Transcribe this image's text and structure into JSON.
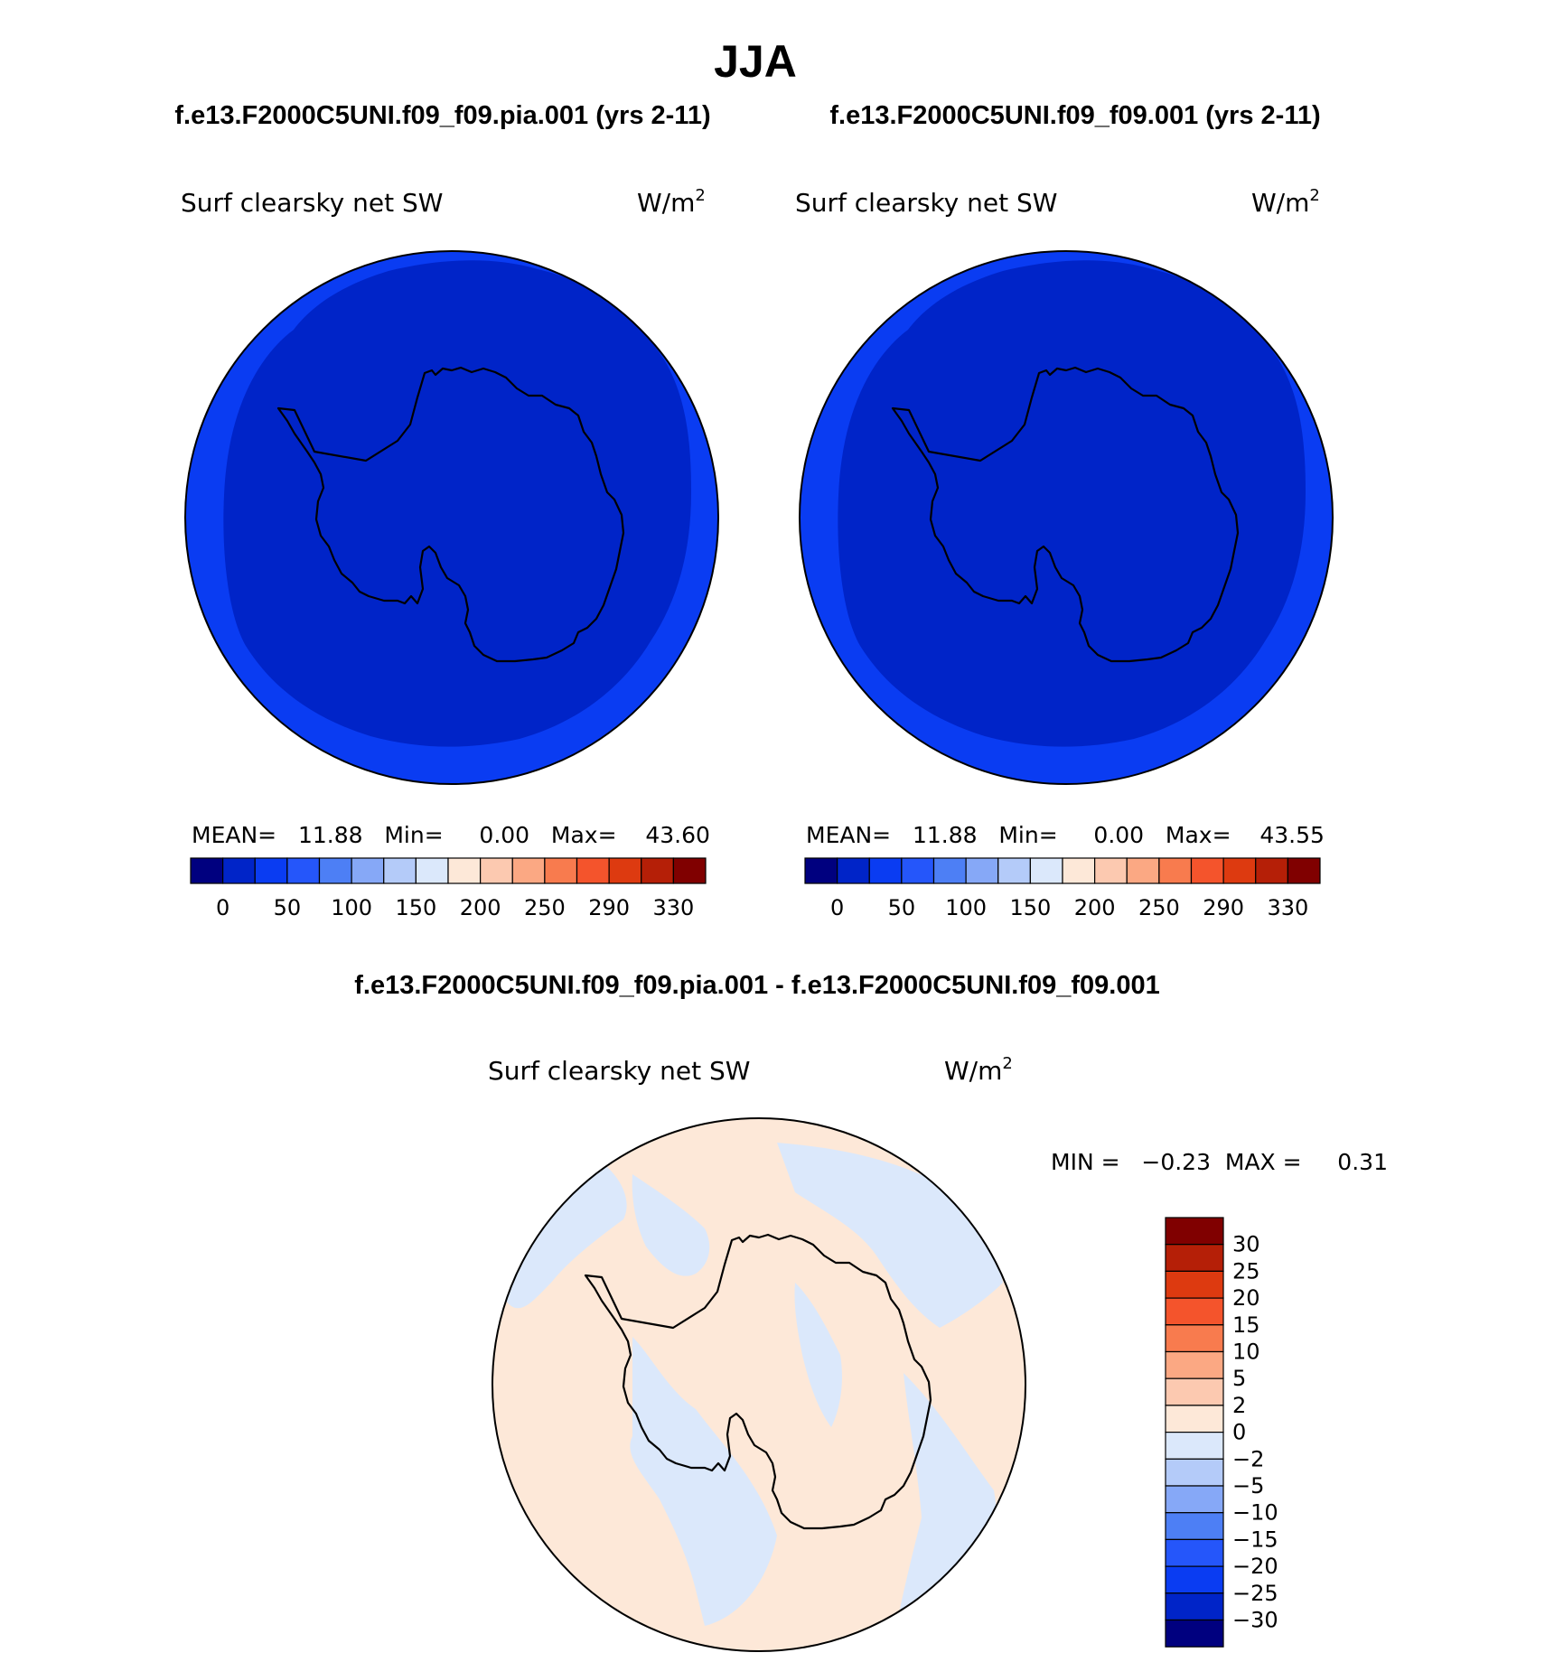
{
  "figure": {
    "title": "JJA",
    "panel_titles": [
      "f.e13.F2000C5UNI.f09_f09.pia.001 (yrs 2-11)",
      "f.e13.F2000C5UNI.f09_f09.001 (yrs 2-11)"
    ],
    "diff_title": "f.e13.F2000C5UNI.f09_f09.pia.001 - f.e13.F2000C5UNI.f09_f09.001"
  },
  "panels": [
    {
      "variable": "Surf clearsky net SW",
      "units_base": "W/m",
      "units_exp": "2",
      "stats": "MEAN=   11.88   Min=     0.00   Max=    43.60",
      "colorbar_ticks": [
        "0",
        "50",
        "100",
        "150",
        "200",
        "250",
        "290",
        "330"
      ],
      "colorbar_colors": [
        "#00007f",
        "#0024c8",
        "#0a3cf2",
        "#2556fa",
        "#4d7ff5",
        "#86a8f7",
        "#b4cbf9",
        "#dbe8fb",
        "#fde8d8",
        "#fcc9b0",
        "#fba883",
        "#f87b4e",
        "#f4542c",
        "#dd3a10",
        "#b51f07",
        "#800000"
      ]
    },
    {
      "variable": "Surf clearsky net SW",
      "units_base": "W/m",
      "units_exp": "2",
      "stats": "MEAN=   11.88   Min=     0.00   Max=    43.55",
      "colorbar_ticks": [
        "0",
        "50",
        "100",
        "150",
        "200",
        "250",
        "290",
        "330"
      ],
      "colorbar_colors": [
        "#00007f",
        "#0024c8",
        "#0a3cf2",
        "#2556fa",
        "#4d7ff5",
        "#86a8f7",
        "#b4cbf9",
        "#dbe8fb",
        "#fde8d8",
        "#fcc9b0",
        "#fba883",
        "#f87b4e",
        "#f4542c",
        "#dd3a10",
        "#b51f07",
        "#800000"
      ]
    }
  ],
  "diff_panel": {
    "variable": "Surf clearsky net SW",
    "units_base": "W/m",
    "units_exp": "2",
    "stats": "MIN =   −0.23  MAX =     0.31",
    "colorbar_ticks": [
      "30",
      "25",
      "20",
      "15",
      "10",
      "5",
      "2",
      "0",
      "−2",
      "−5",
      "−10",
      "−15",
      "−20",
      "−25",
      "−30"
    ],
    "colorbar_colors": [
      "#800000",
      "#b51f07",
      "#dd3a10",
      "#f4542c",
      "#f87b4e",
      "#fba883",
      "#fcc9b0",
      "#fde8d8",
      "#dbe8fb",
      "#b4cbf9",
      "#86a8f7",
      "#4d7ff5",
      "#2556fa",
      "#0a3cf2",
      "#0024c8",
      "#00007f"
    ]
  },
  "map_colors": {
    "ocean_fill": "#0024c8",
    "outer_ring": "#0a3cf2",
    "diff_positive": "#fde8d8",
    "diff_negative": "#dbe8fb"
  }
}
